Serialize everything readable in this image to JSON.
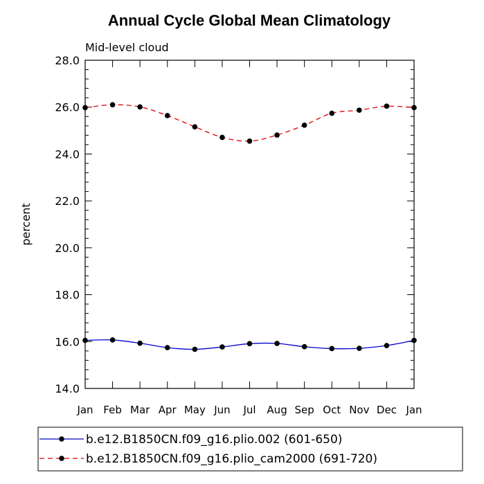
{
  "chart_data": {
    "type": "line",
    "title": "Annual Cycle Global Mean Climatology",
    "subtitle": "Mid-level cloud",
    "xlabel": "",
    "ylabel": "percent",
    "categories": [
      "Jan",
      "Feb",
      "Mar",
      "Apr",
      "May",
      "Jun",
      "Jul",
      "Aug",
      "Sep",
      "Oct",
      "Nov",
      "Dec",
      "Jan"
    ],
    "ylim": [
      14.0,
      28.0
    ],
    "yticks": [
      "14.0",
      "16.0",
      "18.0",
      "20.0",
      "22.0",
      "24.0",
      "26.0",
      "28.0"
    ],
    "series": [
      {
        "name": "b.e12.B1850CN.f09_g16.plio.002 (601-650)",
        "color": "#0000cc",
        "dash": "solid",
        "values": [
          16.05,
          16.07,
          15.93,
          15.74,
          15.67,
          15.77,
          15.91,
          15.92,
          15.78,
          15.7,
          15.71,
          15.83,
          16.05
        ]
      },
      {
        "name": "b.e12.B1850CN.f09_g16.plio_cam2000 (691-720)",
        "color": "#e00000",
        "dash": "dashed",
        "values": [
          25.98,
          26.1,
          26.01,
          25.64,
          25.16,
          24.71,
          24.55,
          24.81,
          25.23,
          25.74,
          25.87,
          26.04,
          25.98
        ]
      }
    ]
  }
}
